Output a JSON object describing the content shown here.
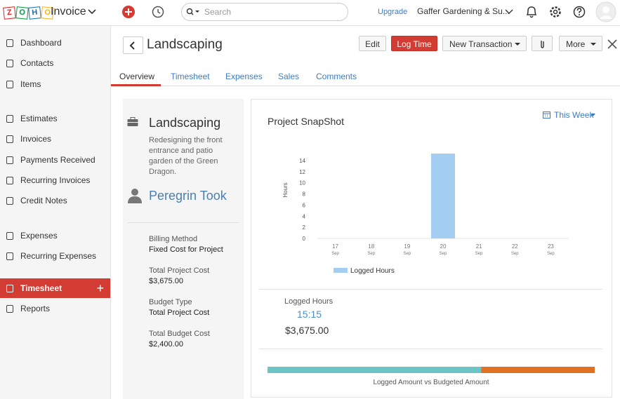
{
  "header": {
    "logo": "ZOHO",
    "app": "Invoice",
    "search": "Search",
    "upgrade": "Upgrade",
    "org": "Gaffer Gardening & Su..."
  },
  "sidebar": {
    "items": [
      "Dashboard",
      "Contacts",
      "Items",
      "Estimates",
      "Invoices",
      "Payments Received",
      "Recurring Invoices",
      "Credit Notes",
      "Expenses",
      "Recurring Expenses",
      "Timesheet",
      "Reports"
    ],
    "active": 10
  },
  "page": {
    "title": "Landscaping",
    "buttons": [
      "Edit",
      "Log Time",
      "New Transaction",
      "More"
    ],
    "tabs": [
      "Overview",
      "Timesheet",
      "Expenses",
      "Sales",
      "Comments"
    ]
  },
  "project": {
    "name": "Landscaping",
    "description": "Redesigning the front entrance and patio garden of the Green Dragon.",
    "customer": "Peregrin Took",
    "fields": [
      {
        "label": "Billing Method",
        "value": "Fixed Cost for Project"
      },
      {
        "label": "Total Project Cost",
        "value": "$3,675.00"
      },
      {
        "label": "Budget Type",
        "value": "Total Project Cost"
      },
      {
        "label": "Total Budget Cost",
        "value": "$2,400.00"
      }
    ]
  },
  "snapshot": {
    "title": "Project SnapShot",
    "period": "This Week",
    "logged_label": "Logged Hours",
    "logged_hours": "15:15",
    "logged_amount": "$3,675.00",
    "progress_label": "Logged Amount vs Budgeted Amount",
    "progress": {
      "logged": 3675,
      "budgeted": 2400,
      "colors": [
        "#6cc5c4",
        "#e07122"
      ]
    }
  },
  "chart_data": {
    "type": "bar",
    "categories": [
      [
        "17",
        "Sep"
      ],
      [
        "18",
        "Sep"
      ],
      [
        "19",
        "Sep"
      ],
      [
        "20",
        "Sep"
      ],
      [
        "21",
        "Sep"
      ],
      [
        "22",
        "Sep"
      ],
      [
        "23",
        "Sep"
      ]
    ],
    "series": [
      {
        "name": "Logged Hours",
        "color": "#a3cef1",
        "values": [
          0,
          0,
          0,
          15.25,
          0,
          0,
          0
        ]
      }
    ],
    "y_label": "Hours",
    "ylim": [
      0,
      15.25
    ],
    "yticks": [
      0,
      2,
      4,
      6,
      8,
      10,
      12,
      14
    ],
    "grid": false
  }
}
